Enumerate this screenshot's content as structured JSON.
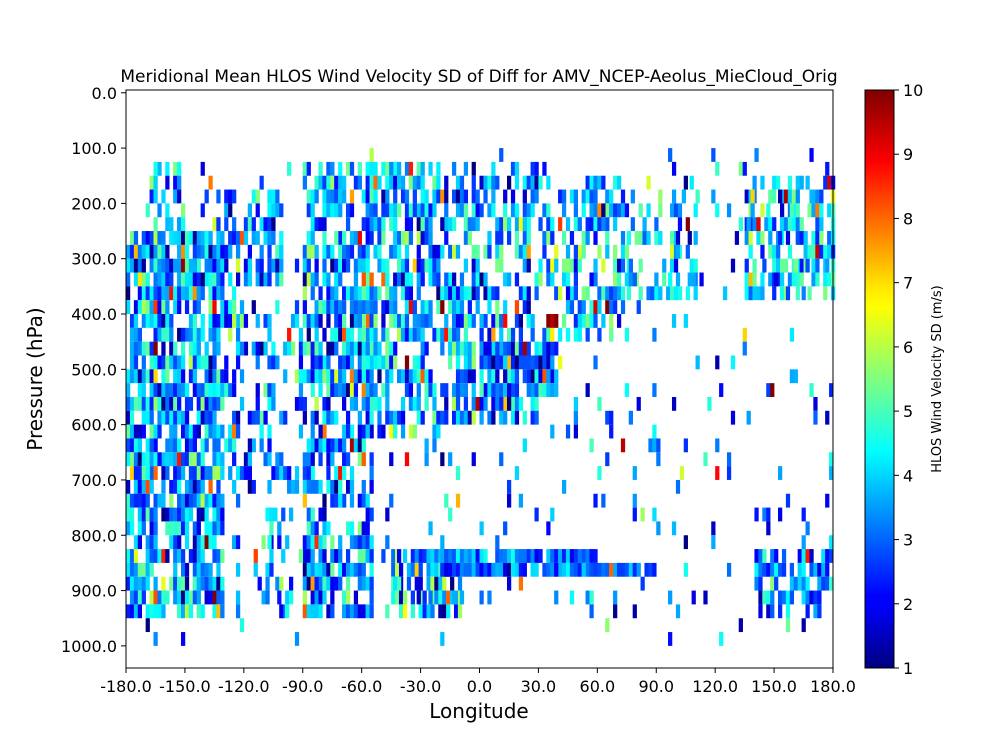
{
  "chart_data": {
    "type": "heatmap",
    "title": "Meridional Mean HLOS Wind Velocity SD of Diff for AMV_NCEP-Aeolus_MieCloud_Orig",
    "xlabel": "Longitude",
    "ylabel": "Pressure (hPa)",
    "xlim": [
      -180,
      180
    ],
    "ylim": [
      1040,
      -5
    ],
    "y_inverted": true,
    "x_ticks": [
      -180,
      -150,
      -120,
      -90,
      -60,
      -30,
      0,
      30,
      60,
      90,
      120,
      150,
      180
    ],
    "x_tick_labels": [
      "-180.0",
      "-150.0",
      "-120.0",
      "-90.0",
      "-60.0",
      "-30.0",
      "0.0",
      "30.0",
      "60.0",
      "90.0",
      "120.0",
      "150.0",
      "180.0"
    ],
    "y_ticks": [
      0,
      100,
      200,
      300,
      400,
      500,
      600,
      700,
      800,
      900,
      1000
    ],
    "y_tick_labels": [
      "0.0",
      "100.0",
      "200.0",
      "300.0",
      "400.0",
      "500.0",
      "600.0",
      "700.0",
      "800.0",
      "900.0",
      "1000.0"
    ],
    "colorbar": {
      "label": "HLOS Wind Velocity SD (m/s)",
      "colormap": "jet",
      "vmin": 1,
      "vmax": 10,
      "ticks": [
        1,
        2,
        3,
        4,
        5,
        6,
        7,
        8,
        9,
        10
      ],
      "tick_labels": [
        "1",
        "2",
        "3",
        "4",
        "5",
        "6",
        "7",
        "8",
        "9",
        "10"
      ]
    },
    "grid": false,
    "cell": {
      "dlon": 2,
      "dp": 25
    },
    "regions": [
      {
        "lon": [
          -180,
          -130
        ],
        "p": [
          250,
          950
        ],
        "density": 0.78,
        "mean": 3.5,
        "spread": 1.6
      },
      {
        "lon": [
          -168,
          -150
        ],
        "p": [
          125,
          250
        ],
        "density": 0.55,
        "mean": 3.8,
        "spread": 1.5
      },
      {
        "lon": [
          -130,
          -100
        ],
        "p": [
          175,
          350
        ],
        "density": 0.6,
        "mean": 3.6,
        "spread": 1.5
      },
      {
        "lon": [
          -130,
          -90
        ],
        "p": [
          375,
          725
        ],
        "density": 0.35,
        "mean": 3.2,
        "spread": 1.6
      },
      {
        "lon": [
          -115,
          -95
        ],
        "p": [
          750,
          950
        ],
        "density": 0.3,
        "mean": 3.0,
        "spread": 1.4
      },
      {
        "lon": [
          -90,
          -55
        ],
        "p": [
          125,
          950
        ],
        "density": 0.6,
        "mean": 3.3,
        "spread": 1.6
      },
      {
        "lon": [
          -60,
          -20
        ],
        "p": [
          125,
          625
        ],
        "density": 0.6,
        "mean": 3.8,
        "spread": 1.6
      },
      {
        "lon": [
          -45,
          -10
        ],
        "p": [
          825,
          950
        ],
        "density": 0.75,
        "mean": 3.6,
        "spread": 2.2
      },
      {
        "lon": [
          -20,
          30
        ],
        "p": [
          125,
          600
        ],
        "density": 0.55,
        "mean": 3.4,
        "spread": 1.7
      },
      {
        "lon": [
          0,
          40
        ],
        "p": [
          450,
          550
        ],
        "density": 0.75,
        "mean": 2.8,
        "spread": 1.3
      },
      {
        "lon": [
          -20,
          60
        ],
        "p": [
          825,
          875
        ],
        "density": 0.85,
        "mean": 3.1,
        "spread": 1.0
      },
      {
        "lon": [
          30,
          75
        ],
        "p": [
          150,
          450
        ],
        "density": 0.45,
        "mean": 4.0,
        "spread": 1.5
      },
      {
        "lon": [
          40,
          90
        ],
        "p": [
          850,
          875
        ],
        "density": 0.9,
        "mean": 3.4,
        "spread": 1.0
      },
      {
        "lon": [
          75,
          110
        ],
        "p": [
          150,
          375
        ],
        "density": 0.4,
        "mean": 4.2,
        "spread": 1.5
      },
      {
        "lon": [
          135,
          180
        ],
        "p": [
          150,
          375
        ],
        "density": 0.55,
        "mean": 4.0,
        "spread": 1.6
      },
      {
        "lon": [
          140,
          180
        ],
        "p": [
          825,
          950
        ],
        "density": 0.6,
        "mean": 3.2,
        "spread": 1.5
      },
      {
        "lon": [
          -180,
          180
        ],
        "p": [
          100,
          1000
        ],
        "density": 0.06,
        "mean": 3.2,
        "spread": 1.6
      }
    ]
  }
}
